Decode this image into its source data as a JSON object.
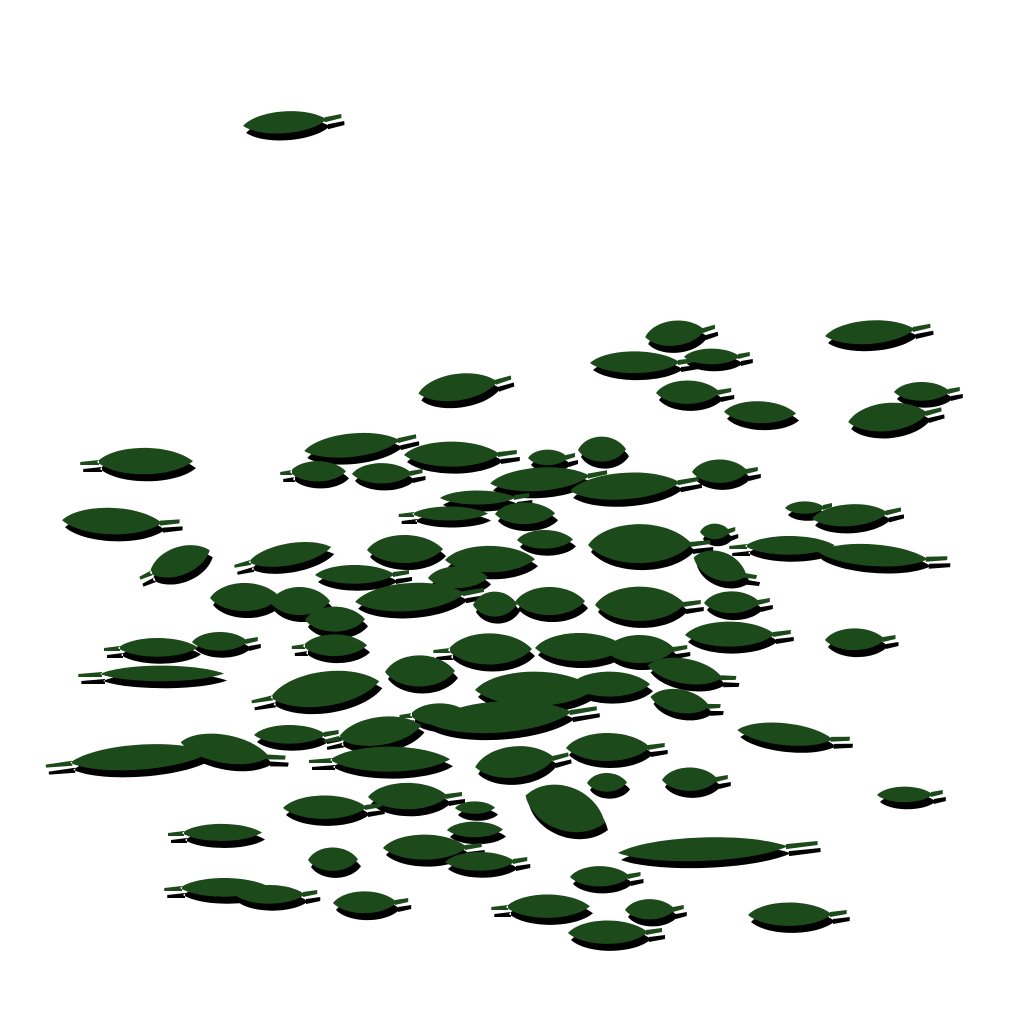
{
  "scene": {
    "subject": "leaf-cluster",
    "colors": {
      "background": "#ffffff",
      "leaf": "#1c4a1a",
      "shadow": "#000000"
    }
  }
}
